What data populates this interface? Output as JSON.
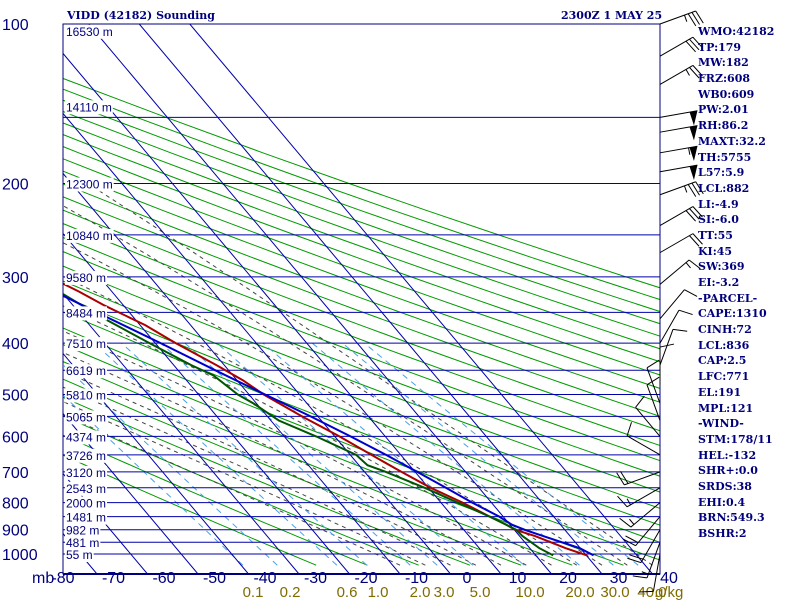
{
  "header": {
    "title": "VIDD (42182) Sounding",
    "datetime": "2300Z  1 MAY 25"
  },
  "indices": [
    "WMO:42182",
    "TP:179",
    "MW:182",
    "FRZ:608",
    "WB0:609",
    "PW:2.01",
    "RH:86.2",
    "MAXT:32.2",
    "TH:5755",
    "L57:5.9",
    "LCL:882",
    "LI:-4.9",
    "SI:-6.0",
    "TT:55",
    "KI:45",
    "SW:369",
    "EI:-3.2",
    "-PARCEL-",
    "CAPE:1310",
    "CINH:72",
    "LCL:836",
    "CAP:2.5",
    "LFC:771",
    "EL:191",
    "MPL:121",
    "-WIND-",
    "STM:178/11",
    "HEL:-132",
    "SHR+:0.0",
    "SRDS:38",
    "EHI:0.4",
    "BRN:549.3",
    "BSHR:2"
  ],
  "colors": {
    "frame": "#00007c",
    "isobar": "#0000aa",
    "isotherm": "#0000aa",
    "dry_adiabat": "#009900",
    "moist_adiabat": "#444444",
    "mixing_ratio": "#4aa0e8",
    "temperature": "#aa0000",
    "dewpoint": "#005500",
    "parcel": "#0000cc",
    "wind": "#000000",
    "mixing_label": "#806b00"
  },
  "chart_data": {
    "type": "line",
    "title": "VIDD (42182) Sounding",
    "pressure_unit": "mb",
    "pressure_levels": [
      100,
      200,
      300,
      400,
      500,
      600,
      700,
      800,
      900,
      1000
    ],
    "pressure_range": [
      100,
      1050
    ],
    "temperature_ticks": [
      -80,
      -70,
      -60,
      -50,
      -40,
      -30,
      -20,
      -10,
      0,
      10,
      20,
      30,
      40
    ],
    "temperature_range": [
      -80,
      40
    ],
    "mixing_ratio_labels": [
      "0.1",
      "0.2",
      "0.6",
      "1.0",
      "2.0",
      "3.0",
      "5.0",
      "10.0",
      "20.0",
      "30.0",
      "40.0"
    ],
    "mixing_ratio_unit": "g/kg",
    "height_labels": [
      {
        "p": 103,
        "h": "16530 m"
      },
      {
        "p": 143,
        "h": "14110 m"
      },
      {
        "p": 200,
        "h": "12300 m"
      },
      {
        "p": 250,
        "h": "10840 m"
      },
      {
        "p": 300,
        "h": "9580 m"
      },
      {
        "p": 350,
        "h": "8484 m"
      },
      {
        "p": 400,
        "h": "7510 m"
      },
      {
        "p": 450,
        "h": "6619 m"
      },
      {
        "p": 500,
        "h": "5810 m"
      },
      {
        "p": 550,
        "h": "5065 m"
      },
      {
        "p": 600,
        "h": "4374 m"
      },
      {
        "p": 650,
        "h": "3726 m"
      },
      {
        "p": 700,
        "h": "3120 m"
      },
      {
        "p": 750,
        "h": "2543 m"
      },
      {
        "p": 800,
        "h": "2000 m"
      },
      {
        "p": 850,
        "h": "1481 m"
      },
      {
        "p": 900,
        "h": "982 m"
      },
      {
        "p": 950,
        "h": "481 m"
      },
      {
        "p": 1000,
        "h": "55 m"
      }
    ],
    "series": [
      {
        "key": "temperature",
        "points": [
          [
            1006,
            28.7
          ],
          [
            975,
            25.7
          ],
          [
            925,
            21.7
          ],
          [
            900,
            18.8
          ],
          [
            880,
            17.9
          ],
          [
            850,
            16.0
          ],
          [
            800,
            13.0
          ],
          [
            750,
            9.2
          ],
          [
            700,
            6.1
          ],
          [
            650,
            3.0
          ],
          [
            600,
            -0.2
          ],
          [
            550,
            -4.2
          ],
          [
            500,
            -8.1
          ],
          [
            470,
            -9.8
          ],
          [
            440,
            -12.5
          ],
          [
            400,
            -16.8
          ],
          [
            370,
            -19.8
          ],
          [
            340,
            -24.5
          ],
          [
            320,
            -27.2
          ],
          [
            300,
            -30.6
          ],
          [
            270,
            -35.4
          ],
          [
            250,
            -38.9
          ],
          [
            225,
            -44.5
          ],
          [
            200,
            -51.3
          ],
          [
            180,
            -56.0
          ],
          [
            165,
            -60.5
          ],
          [
            152,
            -64.0
          ],
          [
            148,
            -63.5
          ],
          [
            140,
            -66.0
          ],
          [
            127,
            -69.5
          ],
          [
            110,
            -72.5
          ],
          [
            100,
            -74.5
          ]
        ]
      },
      {
        "key": "dewpoint",
        "points": [
          [
            1006,
            22.0
          ],
          [
            975,
            20.5
          ],
          [
            925,
            19.2
          ],
          [
            900,
            19.0
          ],
          [
            850,
            16.0
          ],
          [
            800,
            12.0
          ],
          [
            750,
            8.0
          ],
          [
            700,
            3.0
          ],
          [
            680,
            0.5
          ],
          [
            650,
            0.0
          ],
          [
            600,
            -4.8
          ],
          [
            560,
            -9.5
          ],
          [
            520,
            -11.6
          ],
          [
            500,
            -13.2
          ],
          [
            460,
            -14.8
          ],
          [
            440,
            -17.5
          ],
          [
            400,
            -22.0
          ],
          [
            360,
            -26.8
          ],
          [
            320,
            -31.2
          ],
          [
            300,
            -34.0
          ],
          [
            270,
            -39.0
          ],
          [
            250,
            -42.3
          ],
          [
            225,
            -46.5
          ],
          [
            200,
            -52.6
          ],
          [
            180,
            -58.5
          ],
          [
            165,
            -63.5
          ],
          [
            155,
            -66.3
          ],
          [
            140,
            -67.3
          ],
          [
            127,
            -70.2
          ],
          [
            110,
            -73.5
          ],
          [
            100,
            -75.5
          ]
        ]
      },
      {
        "key": "parcel",
        "points": [
          [
            1006,
            30.0
          ],
          [
            975,
            28.5
          ],
          [
            925,
            23.3
          ],
          [
            900,
            20.6
          ],
          [
            880,
            19.0
          ],
          [
            850,
            17.9
          ],
          [
            800,
            14.9
          ],
          [
            750,
            12.2
          ],
          [
            700,
            9.2
          ],
          [
            650,
            5.9
          ],
          [
            600,
            2.0
          ],
          [
            550,
            -2.5
          ],
          [
            500,
            -7.8
          ],
          [
            450,
            -13.6
          ],
          [
            400,
            -19.8
          ],
          [
            350,
            -27.2
          ],
          [
            300,
            -35.5
          ],
          [
            250,
            -45.7
          ],
          [
            220,
            -52.4
          ],
          [
            191,
            -60.4
          ],
          [
            170,
            -66.5
          ],
          [
            150,
            -73.5
          ],
          [
            130,
            -81.0
          ],
          [
            115,
            -87.0
          ]
        ]
      }
    ],
    "wind_barbs": [
      {
        "p": 100,
        "dir": 70,
        "spd": 35
      },
      {
        "p": 115,
        "dir": 60,
        "spd": 30
      },
      {
        "p": 130,
        "dir": 60,
        "spd": 25
      },
      {
        "p": 150,
        "dir": 80,
        "spd": 50
      },
      {
        "p": 160,
        "dir": 80,
        "spd": 50
      },
      {
        "p": 175,
        "dir": 80,
        "spd": 55
      },
      {
        "p": 190,
        "dir": 80,
        "spd": 50
      },
      {
        "p": 210,
        "dir": 70,
        "spd": 35
      },
      {
        "p": 240,
        "dir": 60,
        "spd": 30
      },
      {
        "p": 270,
        "dir": 60,
        "spd": 20
      },
      {
        "p": 310,
        "dir": 50,
        "spd": 15
      },
      {
        "p": 360,
        "dir": 40,
        "spd": 10
      },
      {
        "p": 400,
        "dir": 30,
        "spd": 10
      },
      {
        "p": 440,
        "dir": 20,
        "spd": 10
      },
      {
        "p": 480,
        "dir": 360,
        "spd": 10
      },
      {
        "p": 520,
        "dir": 340,
        "spd": 10
      },
      {
        "p": 560,
        "dir": 340,
        "spd": 10
      },
      {
        "p": 600,
        "dir": 320,
        "spd": 10
      },
      {
        "p": 650,
        "dir": 300,
        "spd": 10
      },
      {
        "p": 700,
        "dir": 250,
        "spd": 20
      },
      {
        "p": 750,
        "dir": 240,
        "spd": 15
      },
      {
        "p": 800,
        "dir": 230,
        "spd": 15
      },
      {
        "p": 850,
        "dir": 220,
        "spd": 20
      },
      {
        "p": 900,
        "dir": 210,
        "spd": 20
      },
      {
        "p": 950,
        "dir": 200,
        "spd": 15
      },
      {
        "p": 1000,
        "dir": 190,
        "spd": 10
      }
    ]
  }
}
